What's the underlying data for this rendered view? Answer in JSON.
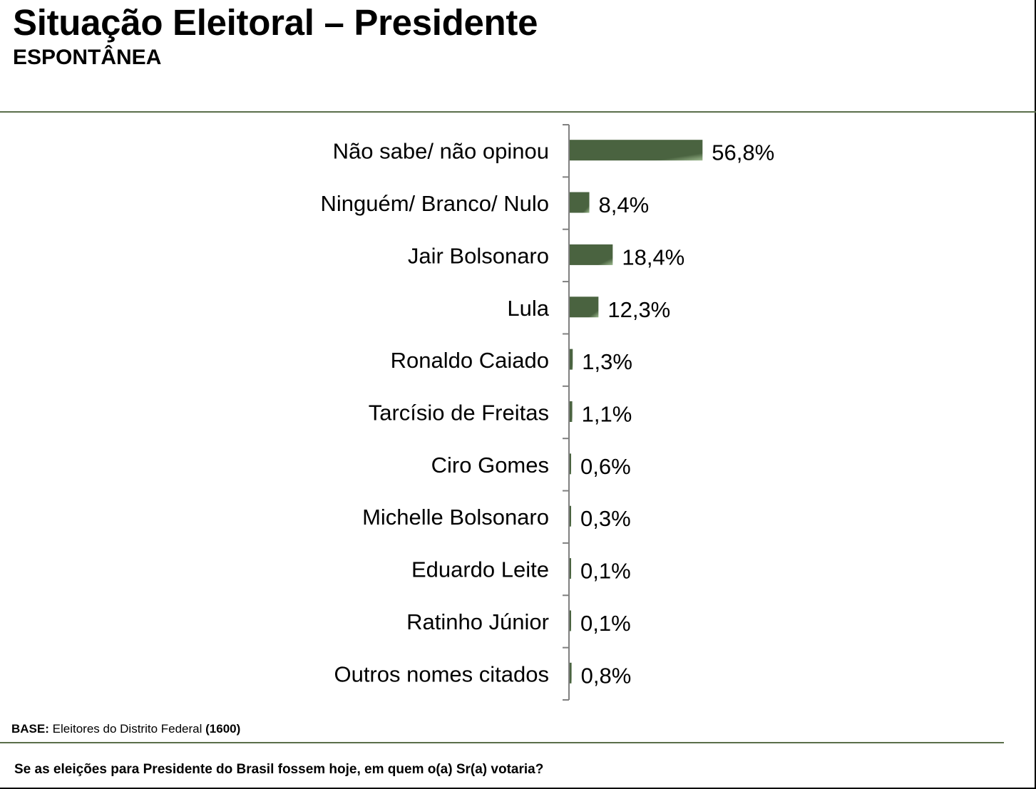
{
  "header": {
    "title": "Situação Eleitoral – Presidente",
    "subtitle": "ESPONTÂNEA"
  },
  "footer": {
    "base_label": "BASE:",
    "base_text": "Eleitores do Distrito Federal",
    "base_count": "(1600)",
    "question": "Se as eleições para Presidente do Brasil fossem hoje, em quem o(a) Sr(a) votaria?"
  },
  "colors": {
    "bar_dark": "#4a6340",
    "bar_light": "#9cb98e",
    "axis": "#808080",
    "rule": "#5a6e4a"
  },
  "chart_data": {
    "type": "bar",
    "orientation": "horizontal",
    "categories": [
      "Não sabe/ não opinou",
      "Ninguém/ Branco/ Nulo",
      "Jair Bolsonaro",
      "Lula",
      "Ronaldo Caiado",
      "Tarcísio de Freitas",
      "Ciro Gomes",
      "Michelle Bolsonaro",
      "Eduardo Leite",
      "Ratinho Júnior",
      "Outros nomes citados"
    ],
    "values": [
      56.8,
      8.4,
      18.4,
      12.3,
      1.3,
      1.1,
      0.6,
      0.3,
      0.1,
      0.1,
      0.8
    ],
    "value_labels": [
      "56,8%",
      "8,4%",
      "18,4%",
      "12,3%",
      "1,3%",
      "1,1%",
      "0,6%",
      "0,3%",
      "0,1%",
      "0,1%",
      "0,8%"
    ],
    "title": "",
    "xlabel": "",
    "ylabel": "",
    "xlim": [
      0,
      100
    ],
    "grid": false,
    "legend": "none"
  }
}
